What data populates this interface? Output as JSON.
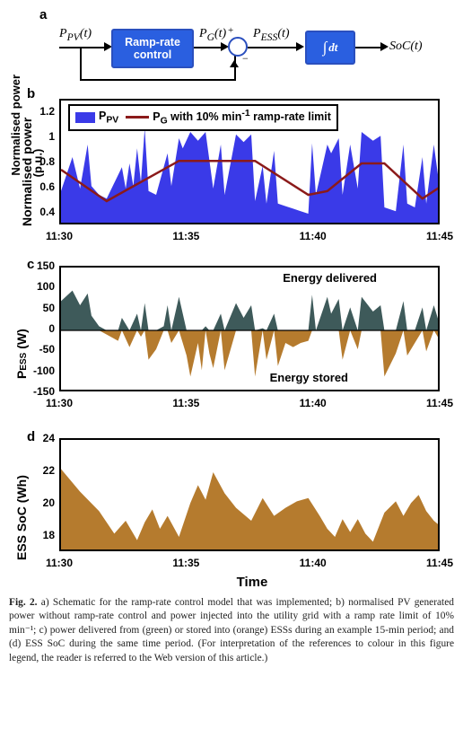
{
  "panels": {
    "a": "a",
    "b": "b",
    "c": "c",
    "d": "d"
  },
  "a": {
    "Ppv": "P_PV(t)",
    "ramp_box": "Ramp-rate\ncontrol",
    "Pg": "P_G(t)",
    "Pess": "P_ESS(t)",
    "integ": "∫ dt",
    "soc": "SoC(t)",
    "plus": "+",
    "minus": "−",
    "box_fill": "#2a5fe0",
    "box_border": "#2a4fbe",
    "text_color": "#ffffff"
  },
  "b": {
    "ylabel": "Normalised power\n(p.u.)",
    "legend": {
      "ppv": "P_PV",
      "pg": "P_G with 10% min⁻¹ ramp-rate limit",
      "ppv_color": "#3a3ae8",
      "pg_color": "#8b1a1a"
    },
    "ylim": [
      0.3,
      1.3
    ],
    "yticks": [
      0.4,
      0.6,
      0.8,
      1.0,
      1.2
    ],
    "xticks": [
      "11:30",
      "11:35",
      "11:40",
      "11:45"
    ],
    "fill_color": "#3a3ae8",
    "line_color": "#8b1a1a",
    "ppv_series": [
      [
        0,
        0.58
      ],
      [
        3,
        0.85
      ],
      [
        5,
        0.6
      ],
      [
        7,
        0.95
      ],
      [
        8,
        0.62
      ],
      [
        10,
        0.55
      ],
      [
        12,
        0.52
      ],
      [
        16,
        0.77
      ],
      [
        17,
        0.6
      ],
      [
        18,
        0.8
      ],
      [
        19,
        0.62
      ],
      [
        20,
        0.92
      ],
      [
        21,
        0.65
      ],
      [
        22,
        1.08
      ],
      [
        23,
        0.58
      ],
      [
        25,
        0.55
      ],
      [
        28,
        0.88
      ],
      [
        29,
        0.62
      ],
      [
        31,
        1.0
      ],
      [
        32,
        0.92
      ],
      [
        34,
        1.05
      ],
      [
        36,
        0.98
      ],
      [
        38,
        1.05
      ],
      [
        40,
        0.6
      ],
      [
        42,
        0.95
      ],
      [
        43,
        0.55
      ],
      [
        46,
        1.03
      ],
      [
        48,
        0.97
      ],
      [
        50,
        1.03
      ],
      [
        51,
        0.5
      ],
      [
        53,
        0.78
      ],
      [
        54,
        0.48
      ],
      [
        56,
        0.9
      ],
      [
        57,
        0.48
      ],
      [
        59,
        0.46
      ],
      [
        61,
        0.44
      ],
      [
        63,
        0.42
      ],
      [
        65,
        0.4
      ],
      [
        66,
        0.96
      ],
      [
        67,
        0.55
      ],
      [
        70,
        0.95
      ],
      [
        71,
        0.88
      ],
      [
        73,
        1.0
      ],
      [
        74,
        0.55
      ],
      [
        76,
        0.95
      ],
      [
        78,
        0.6
      ],
      [
        79,
        1.05
      ],
      [
        82,
        0.98
      ],
      [
        84,
        1.02
      ],
      [
        85,
        0.45
      ],
      [
        88,
        0.42
      ],
      [
        90,
        0.95
      ],
      [
        91,
        0.48
      ],
      [
        93,
        0.45
      ],
      [
        95,
        0.85
      ],
      [
        96,
        0.48
      ],
      [
        98,
        0.95
      ],
      [
        100,
        0.5
      ]
    ],
    "pg_series": [
      [
        0,
        0.75
      ],
      [
        12,
        0.5
      ],
      [
        31,
        0.82
      ],
      [
        40,
        0.82
      ],
      [
        51,
        0.82
      ],
      [
        65,
        0.55
      ],
      [
        70,
        0.58
      ],
      [
        79,
        0.8
      ],
      [
        85,
        0.8
      ],
      [
        95,
        0.52
      ],
      [
        100,
        0.62
      ]
    ]
  },
  "c": {
    "ylabel": "P_ESS (W)",
    "annot_delivered": "Energy delivered",
    "annot_stored": "Energy stored",
    "ylim": [
      -150,
      150
    ],
    "yticks": [
      -150,
      -100,
      -50,
      0,
      50,
      100,
      150
    ],
    "xticks": [
      "11:30",
      "11:35",
      "11:40",
      "11:45"
    ],
    "pos_color": "#3e5a5a",
    "neg_color": "#b57b2e",
    "series": [
      [
        0,
        70
      ],
      [
        3,
        95
      ],
      [
        5,
        60
      ],
      [
        7,
        88
      ],
      [
        8,
        35
      ],
      [
        10,
        10
      ],
      [
        12,
        -10
      ],
      [
        15,
        -25
      ],
      [
        16,
        30
      ],
      [
        18,
        -40
      ],
      [
        20,
        40
      ],
      [
        21,
        -15
      ],
      [
        22,
        65
      ],
      [
        23,
        -70
      ],
      [
        25,
        -45
      ],
      [
        27,
        10
      ],
      [
        28,
        60
      ],
      [
        29,
        -30
      ],
      [
        31,
        80
      ],
      [
        33,
        -60
      ],
      [
        34,
        -110
      ],
      [
        36,
        -30
      ],
      [
        37,
        -95
      ],
      [
        38,
        10
      ],
      [
        39,
        -55
      ],
      [
        40,
        -90
      ],
      [
        42,
        40
      ],
      [
        43,
        -95
      ],
      [
        46,
        65
      ],
      [
        48,
        30
      ],
      [
        50,
        60
      ],
      [
        51,
        -110
      ],
      [
        53,
        5
      ],
      [
        54,
        -70
      ],
      [
        56,
        40
      ],
      [
        57,
        -85
      ],
      [
        59,
        -30
      ],
      [
        61,
        -40
      ],
      [
        63,
        -30
      ],
      [
        65,
        -25
      ],
      [
        66,
        85
      ],
      [
        67,
        0
      ],
      [
        70,
        80
      ],
      [
        71,
        40
      ],
      [
        73,
        75
      ],
      [
        74,
        -70
      ],
      [
        76,
        55
      ],
      [
        78,
        -45
      ],
      [
        79,
        80
      ],
      [
        82,
        45
      ],
      [
        84,
        60
      ],
      [
        85,
        -110
      ],
      [
        88,
        -55
      ],
      [
        90,
        70
      ],
      [
        91,
        -60
      ],
      [
        93,
        -30
      ],
      [
        95,
        55
      ],
      [
        96,
        -50
      ],
      [
        98,
        60
      ],
      [
        100,
        -30
      ]
    ]
  },
  "d": {
    "ylabel": "ESS SoC (Wh)",
    "xlabel": "Time",
    "ylim": [
      17,
      24
    ],
    "yticks": [
      18,
      20,
      22,
      24
    ],
    "xticks": [
      "11:30",
      "11:35",
      "11:40",
      "11:45"
    ],
    "fill_color": "#b57b2e",
    "series": [
      [
        0,
        22.2
      ],
      [
        5,
        20.8
      ],
      [
        10,
        19.6
      ],
      [
        14,
        18.2
      ],
      [
        17,
        19.0
      ],
      [
        20,
        17.8
      ],
      [
        22,
        18.9
      ],
      [
        24,
        19.7
      ],
      [
        26,
        18.5
      ],
      [
        28,
        19.3
      ],
      [
        31,
        18.0
      ],
      [
        34,
        20.1
      ],
      [
        36,
        21.2
      ],
      [
        38,
        20.3
      ],
      [
        40,
        22.0
      ],
      [
        43,
        20.7
      ],
      [
        46,
        19.8
      ],
      [
        50,
        19.0
      ],
      [
        53,
        20.4
      ],
      [
        56,
        19.3
      ],
      [
        59,
        19.8
      ],
      [
        62,
        20.2
      ],
      [
        65,
        20.4
      ],
      [
        68,
        19.3
      ],
      [
        70,
        18.5
      ],
      [
        72,
        18.0
      ],
      [
        74,
        19.1
      ],
      [
        76,
        18.3
      ],
      [
        78,
        19.1
      ],
      [
        80,
        18.2
      ],
      [
        82,
        17.7
      ],
      [
        85,
        19.5
      ],
      [
        88,
        20.2
      ],
      [
        90,
        19.3
      ],
      [
        92,
        20.1
      ],
      [
        94,
        20.6
      ],
      [
        96,
        19.6
      ],
      [
        98,
        19.0
      ],
      [
        100,
        18.6
      ]
    ]
  },
  "caption": {
    "label": "Fig. 2.",
    "text": "a) Schematic for the ramp-rate control model that was implemented; b) normalised PV generated power without ramp-rate control and power injected into the utility grid with a ramp rate limit of 10% min⁻¹; c) power delivered from (green) or stored into (orange) ESSs during an example 15-min period; and (d) ESS SoC during the same time period. (For interpretation of the references to colour in this figure legend, the reader is referred to the Web version of this article.)"
  }
}
